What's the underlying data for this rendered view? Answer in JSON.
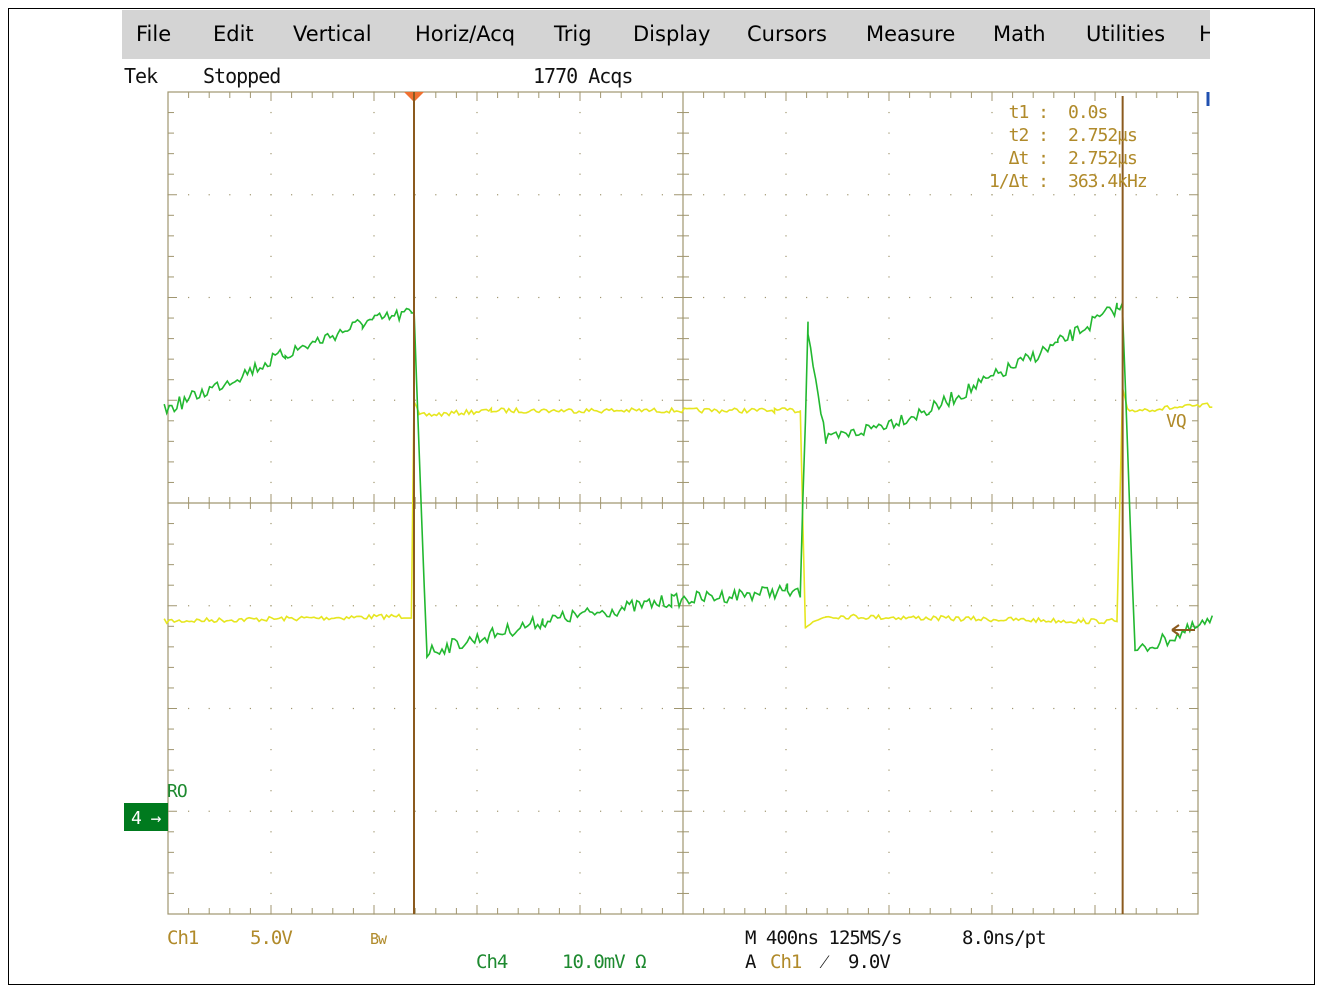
{
  "menu": [
    "File",
    "Edit",
    "Vertical",
    "Horiz/Acq",
    "Trig",
    "Display",
    "Cursors",
    "Measure",
    "Math",
    "Utilities",
    "H"
  ],
  "status": {
    "brand": "Tek",
    "state": "Stopped",
    "acqs": "1770 Acqs"
  },
  "cursor_readout": {
    "t1_label": "t1 :",
    "t1_value": "0.0s",
    "t2_label": "t2 :",
    "t2_value": "2.752µs",
    "dt_label": "Δt :",
    "dt_value": "2.752µs",
    "inv_label": "1/Δt :",
    "inv_value": "363.4kHz"
  },
  "markers": {
    "vq": "VQ",
    "ro": "RO",
    "ch4_marker": "4 →",
    "ch4_marker_color": "#007a1e"
  },
  "footer": {
    "ch1_label": "Ch1",
    "ch1_scale": "5.0V",
    "bw": "Bw",
    "ch4_label": "Ch4",
    "ch4_scale": "10.0mV Ω",
    "timebase": "M 400ns 125MS/s",
    "resolution": "8.0ns/pt",
    "trig_prefix": "A",
    "trig_source": "Ch1",
    "trig_slope": "⁄",
    "trig_level": "9.0V"
  },
  "colors": {
    "ch1": "#e6e620",
    "ch4": "#22b830",
    "cursor": "#8b5a1e",
    "label_amber": "#b08a2a",
    "label_green": "#1e8a30",
    "grid": "#a09670",
    "trigger_marker": "#f07030"
  },
  "chart_data": {
    "type": "line",
    "x_unit": "µs",
    "time_per_div": "400ns",
    "cursors_us": [
      0.0,
      2.752
    ],
    "series": [
      {
        "name": "Ch1",
        "x": [
          -0.97,
          -0.01,
          0.0,
          0.02,
          0.3,
          1.4,
          1.5,
          1.52,
          1.6,
          2.6,
          2.73,
          2.752,
          2.77,
          3.1
        ],
        "y": [
          -1.15,
          -1.1,
          1.0,
          0.85,
          0.9,
          0.9,
          0.9,
          -1.2,
          -1.1,
          -1.15,
          -1.15,
          1.1,
          0.9,
          0.95
        ]
      },
      {
        "name": "Ch4",
        "x": [
          -0.97,
          -0.5,
          -0.2,
          -0.01,
          0.0,
          0.05,
          0.5,
          1.0,
          1.45,
          1.5,
          1.53,
          1.6,
          2.0,
          2.5,
          2.73,
          2.752,
          2.8,
          3.1
        ],
        "y": [
          0.9,
          1.45,
          1.75,
          1.85,
          1.85,
          -1.45,
          -1.15,
          -0.95,
          -0.85,
          -0.9,
          1.7,
          0.6,
          0.9,
          1.55,
          1.9,
          1.9,
          -1.45,
          -1.15
        ]
      }
    ]
  }
}
